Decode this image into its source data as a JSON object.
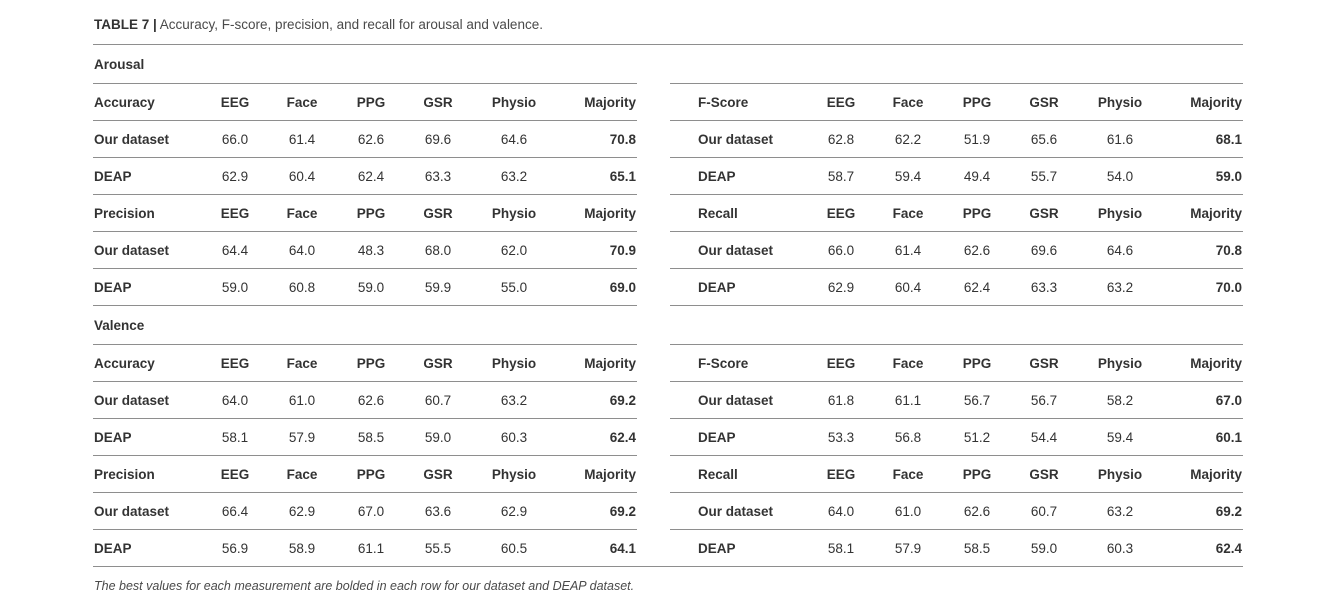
{
  "title": {
    "prefix": "TABLE 7 |",
    "text": " Accuracy, F-score, precision, and recall for arousal and valence."
  },
  "columns": [
    "EEG",
    "Face",
    "PPG",
    "GSR",
    "Physio",
    "Majority"
  ],
  "sections": [
    {
      "name": "Arousal",
      "blocks": [
        {
          "metric": "Accuracy",
          "rows": [
            {
              "label": "Our dataset",
              "values": [
                "66.0",
                "61.4",
                "62.6",
                "69.6",
                "64.6",
                "70.8"
              ]
            },
            {
              "label": "DEAP",
              "values": [
                "62.9",
                "60.4",
                "62.4",
                "63.3",
                "63.2",
                "65.1"
              ]
            }
          ]
        },
        {
          "metric": "F-Score",
          "rows": [
            {
              "label": "Our dataset",
              "values": [
                "62.8",
                "62.2",
                "51.9",
                "65.6",
                "61.6",
                "68.1"
              ]
            },
            {
              "label": "DEAP",
              "values": [
                "58.7",
                "59.4",
                "49.4",
                "55.7",
                "54.0",
                "59.0"
              ]
            }
          ]
        },
        {
          "metric": "Precision",
          "rows": [
            {
              "label": "Our dataset",
              "values": [
                "64.4",
                "64.0",
                "48.3",
                "68.0",
                "62.0",
                "70.9"
              ]
            },
            {
              "label": "DEAP",
              "values": [
                "59.0",
                "60.8",
                "59.0",
                "59.9",
                "55.0",
                "69.0"
              ]
            }
          ]
        },
        {
          "metric": "Recall",
          "rows": [
            {
              "label": "Our dataset",
              "values": [
                "66.0",
                "61.4",
                "62.6",
                "69.6",
                "64.6",
                "70.8"
              ]
            },
            {
              "label": "DEAP",
              "values": [
                "62.9",
                "60.4",
                "62.4",
                "63.3",
                "63.2",
                "70.0"
              ]
            }
          ]
        }
      ]
    },
    {
      "name": "Valence",
      "blocks": [
        {
          "metric": "Accuracy",
          "rows": [
            {
              "label": "Our dataset",
              "values": [
                "64.0",
                "61.0",
                "62.6",
                "60.7",
                "63.2",
                "69.2"
              ]
            },
            {
              "label": "DEAP",
              "values": [
                "58.1",
                "57.9",
                "58.5",
                "59.0",
                "60.3",
                "62.4"
              ]
            }
          ]
        },
        {
          "metric": "F-Score",
          "rows": [
            {
              "label": "Our dataset",
              "values": [
                "61.8",
                "61.1",
                "56.7",
                "56.7",
                "58.2",
                "67.0"
              ]
            },
            {
              "label": "DEAP",
              "values": [
                "53.3",
                "56.8",
                "51.2",
                "54.4",
                "59.4",
                "60.1"
              ]
            }
          ]
        },
        {
          "metric": "Precision",
          "rows": [
            {
              "label": "Our dataset",
              "values": [
                "66.4",
                "62.9",
                "67.0",
                "63.6",
                "62.9",
                "69.2"
              ]
            },
            {
              "label": "DEAP",
              "values": [
                "56.9",
                "58.9",
                "61.1",
                "55.5",
                "60.5",
                "64.1"
              ]
            }
          ]
        },
        {
          "metric": "Recall",
          "rows": [
            {
              "label": "Our dataset",
              "values": [
                "64.0",
                "61.0",
                "62.6",
                "60.7",
                "63.2",
                "69.2"
              ]
            },
            {
              "label": "DEAP",
              "values": [
                "58.1",
                "57.9",
                "58.5",
                "59.0",
                "60.3",
                "62.4"
              ]
            }
          ]
        }
      ]
    }
  ],
  "footnote": "The best values for each measurement are bolded in each row for our dataset and DEAP dataset.",
  "colors": {
    "text": "#333333",
    "rule": "#8e8e8e"
  }
}
